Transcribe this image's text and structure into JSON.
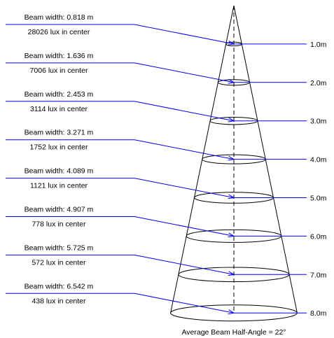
{
  "levels": [
    {
      "beam_width": "Beam width: 0.818 m",
      "lux": "28026 lux in center",
      "distance": "1.0m"
    },
    {
      "beam_width": "Beam width: 1.636 m",
      "lux": "7006 lux in center",
      "distance": "2.0m"
    },
    {
      "beam_width": "Beam width: 2.453 m",
      "lux": "3114 lux in center",
      "distance": "3.0m"
    },
    {
      "beam_width": "Beam width: 3.271 m",
      "lux": "1752 lux in center",
      "distance": "4.0m"
    },
    {
      "beam_width": "Beam width: 4.089 m",
      "lux": "1121 lux in center",
      "distance": "5.0m"
    },
    {
      "beam_width": "Beam width: 4.907 m",
      "lux": "778 lux in center",
      "distance": "6.0m"
    },
    {
      "beam_width": "Beam width: 5.725 m",
      "lux": "572 lux in center",
      "distance": "7.0m"
    },
    {
      "beam_width": "Beam width: 6.542 m",
      "lux": "438 lux in center",
      "distance": "8.0m"
    }
  ],
  "caption": "Average Beam Half-Angle = 22°",
  "colors": {
    "leader_line": "#0000ff",
    "cone_line": "#000000",
    "text": "#000000"
  }
}
